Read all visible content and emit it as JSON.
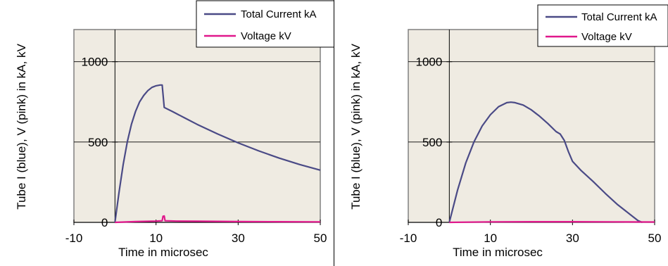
{
  "chart_data": [
    {
      "type": "line",
      "xlabel": "Time in microsec",
      "ylabel": "Tube I (blue), V (pink) in kA, kV",
      "xlim": [
        -10,
        50
      ],
      "ylim": [
        0,
        1200
      ],
      "xticks": [
        -10,
        10,
        30,
        50
      ],
      "yticks": [
        0,
        500,
        1000
      ],
      "grid": "horizontal",
      "legend": "top-right",
      "background": "#efebe2",
      "series": [
        {
          "name": "Total Current kA",
          "color": "#4a4a86",
          "x": [
            0,
            1,
            2,
            3,
            4,
            5,
            6,
            7,
            8,
            9,
            10,
            11,
            11.5,
            12,
            14,
            17,
            20,
            25,
            30,
            35,
            40,
            45,
            50
          ],
          "y": [
            0,
            190,
            360,
            500,
            610,
            690,
            750,
            790,
            820,
            840,
            850,
            855,
            855,
            715,
            690,
            650,
            610,
            550,
            495,
            445,
            400,
            360,
            325
          ]
        },
        {
          "name": "Voltage kV",
          "color": "#e0188c",
          "x": [
            0,
            5,
            10,
            11.5,
            11.7,
            12,
            12.2,
            15,
            20,
            30,
            40,
            50
          ],
          "y": [
            0,
            5,
            8,
            10,
            38,
            40,
            10,
            8,
            7,
            5,
            4,
            3
          ]
        }
      ]
    },
    {
      "type": "line",
      "xlabel": "Time in microsec",
      "ylabel": "Tube I (blue), V (pink) in kA, kV",
      "xlim": [
        -10,
        50
      ],
      "ylim": [
        0,
        1200
      ],
      "xticks": [
        -10,
        10,
        30,
        50
      ],
      "yticks": [
        0,
        500,
        1000
      ],
      "grid": "horizontal",
      "legend": "top-right",
      "background": "#efebe2",
      "series": [
        {
          "name": "Total Current kA",
          "color": "#4a4a86",
          "x": [
            0,
            2,
            4,
            6,
            8,
            10,
            12,
            14,
            15,
            16,
            18,
            20,
            22,
            24,
            26,
            27,
            28,
            29,
            30,
            32,
            35,
            38,
            41,
            44,
            46,
            47
          ],
          "y": [
            0,
            200,
            370,
            500,
            600,
            670,
            720,
            745,
            748,
            745,
            730,
            700,
            660,
            615,
            565,
            550,
            510,
            440,
            380,
            325,
            255,
            180,
            110,
            50,
            10,
            0
          ]
        },
        {
          "name": "Voltage kV",
          "color": "#e0188c",
          "x": [
            0,
            10,
            20,
            30,
            40,
            50
          ],
          "y": [
            0,
            3,
            4,
            4,
            3,
            2
          ]
        }
      ]
    }
  ]
}
